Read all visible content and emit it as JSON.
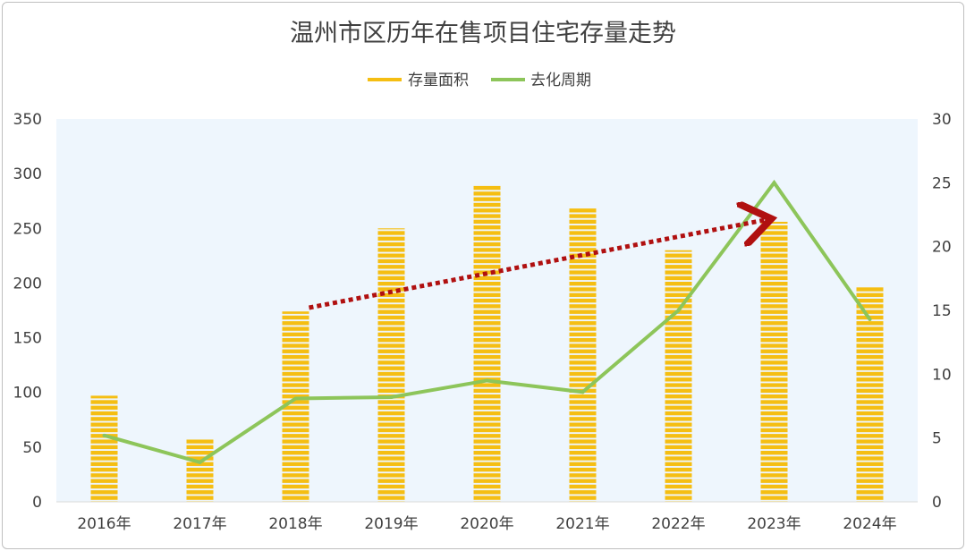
{
  "chart_data": {
    "type": "bar",
    "title": "温州市区历年在售项目住宅存量走势",
    "categories": [
      "2016年",
      "2017年",
      "2018年",
      "2019年",
      "2020年",
      "2021年",
      "2022年",
      "2023年",
      "2024年"
    ],
    "series": [
      {
        "name": "存量面积",
        "type": "bar",
        "axis": "left",
        "color": "#f5be12",
        "values": [
          97,
          57,
          174,
          250,
          290,
          269,
          230,
          256,
          197
        ]
      },
      {
        "name": "去化周期",
        "type": "line",
        "axis": "right",
        "color": "#8dc55a",
        "values": [
          5.2,
          3.1,
          8.1,
          8.2,
          9.5,
          8.6,
          15,
          25,
          14.3
        ]
      }
    ],
    "y_left": {
      "min": 0,
      "max": 350,
      "ticks": [
        0,
        50,
        100,
        150,
        200,
        250,
        300,
        350
      ]
    },
    "y_right": {
      "min": 0,
      "max": 30,
      "ticks": [
        0,
        5,
        10,
        15,
        20,
        25,
        30
      ]
    },
    "legend_position": "top-center",
    "grid": false,
    "annotations": [
      {
        "type": "dotted-arrow",
        "color": "#b01010",
        "from": {
          "category": "2018年",
          "left_value": 175
        },
        "to": {
          "category": "2023年",
          "left_value": 258
        }
      }
    ],
    "plot_background": "#eef6fd"
  }
}
